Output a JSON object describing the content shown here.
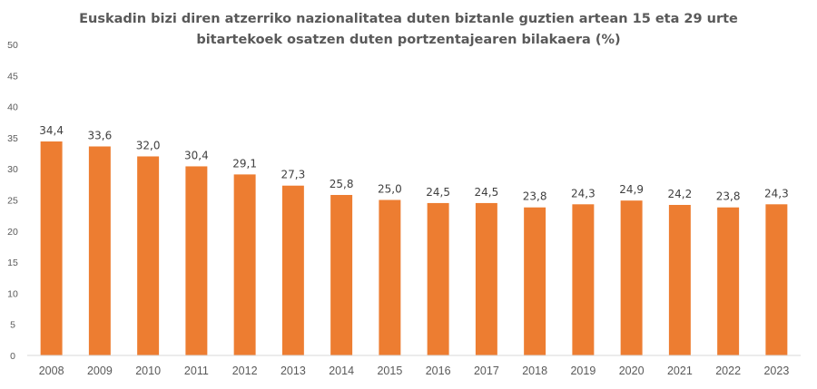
{
  "chart_data": {
    "type": "bar",
    "title_lines": [
      "Euskadin bizi diren atzerriko nazionalitatea duten biztanle guztien artean 15 eta 29 urte",
      "bitartekoek osatzen duten portzentajearen bilakaera (%)"
    ],
    "categories": [
      "2008",
      "2009",
      "2010",
      "2011",
      "2012",
      "2013",
      "2014",
      "2015",
      "2016",
      "2017",
      "2018",
      "2019",
      "2020",
      "2021",
      "2022",
      "2023"
    ],
    "values": [
      34.4,
      33.6,
      32.0,
      30.4,
      29.1,
      27.3,
      25.8,
      25.0,
      24.5,
      24.5,
      23.8,
      24.3,
      24.9,
      24.2,
      23.8,
      24.3
    ],
    "value_labels": [
      "34,4",
      "33,6",
      "32,0",
      "30,4",
      "29,1",
      "27,3",
      "25,8",
      "25,0",
      "24,5",
      "24,5",
      "23,8",
      "24,3",
      "24,9",
      "24,2",
      "23,8",
      "24,3"
    ],
    "y_ticks": [
      "0",
      "5",
      "10",
      "15",
      "20",
      "25",
      "30",
      "35",
      "40",
      "45",
      "50"
    ],
    "ylim": [
      0,
      50
    ],
    "grid": false,
    "legend": "none",
    "bar_color": "#ED7D31",
    "axis_color": "#D9D9D9"
  }
}
